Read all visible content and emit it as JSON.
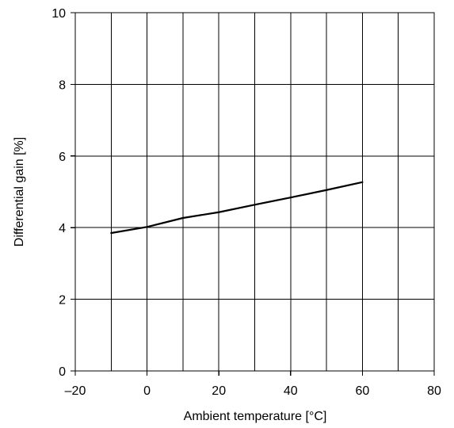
{
  "chart_data": {
    "type": "line",
    "xlabel": "Ambient temperature [°C]",
    "ylabel": "Differential gain [%]",
    "xlim": [
      -20,
      80
    ],
    "ylim": [
      0,
      10
    ],
    "x_ticks": [
      -20,
      0,
      20,
      40,
      60,
      80
    ],
    "x_tick_labels": [
      "–20",
      "0",
      "20",
      "40",
      "60",
      "80"
    ],
    "y_ticks": [
      0,
      2,
      4,
      6,
      8,
      10
    ],
    "y_tick_labels": [
      "0",
      "2",
      "4",
      "6",
      "8",
      "10"
    ],
    "x_grid_step": 10,
    "y_grid_step": 2,
    "grid": true,
    "series": [
      {
        "x": [
          -10,
          0,
          10,
          20,
          30,
          40,
          50,
          60
        ],
        "y": [
          3.85,
          4.02,
          4.27,
          4.43,
          4.64,
          4.84,
          5.05,
          5.27
        ]
      }
    ]
  }
}
